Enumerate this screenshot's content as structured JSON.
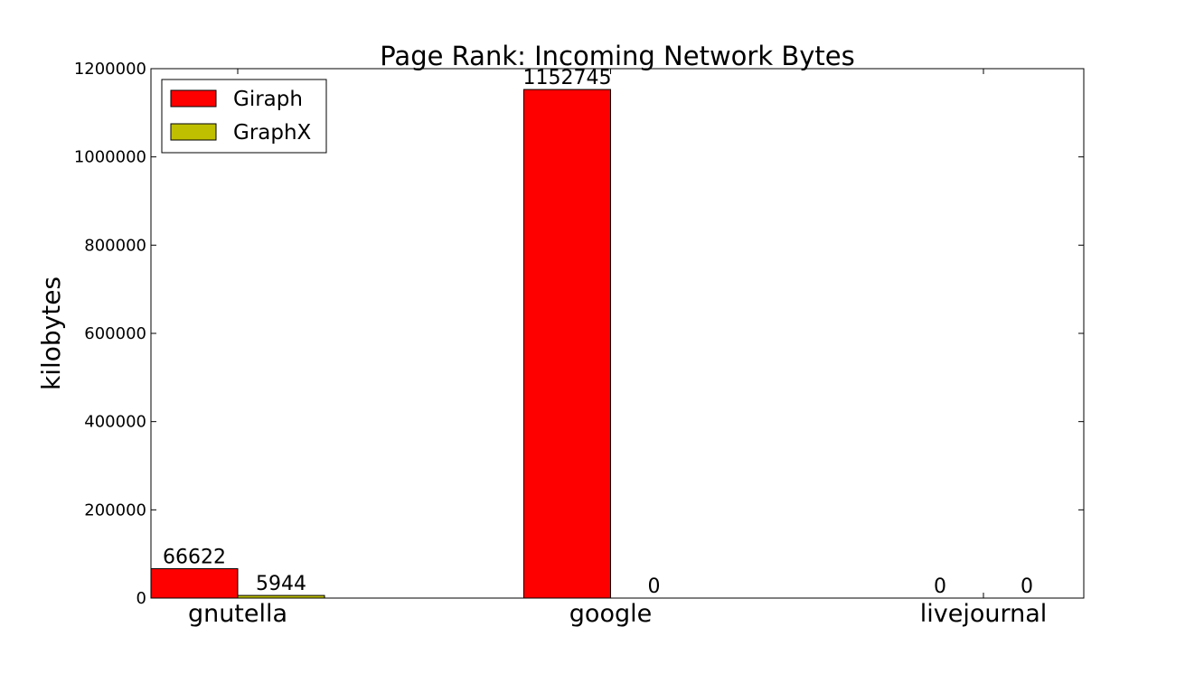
{
  "chart_data": {
    "type": "bar",
    "title": "Page Rank: Incoming Network Bytes",
    "xlabel": "",
    "ylabel": "kilobytes",
    "categories": [
      "gnutella",
      "google",
      "livejournal"
    ],
    "series": [
      {
        "name": "Giraph",
        "values": [
          66622,
          1152745,
          0
        ],
        "labels": [
          "66622",
          "1152745",
          "0"
        ],
        "color": "#ff0000"
      },
      {
        "name": "GraphX",
        "values": [
          5944,
          0,
          0
        ],
        "labels": [
          "5944",
          "0",
          "0"
        ],
        "color": "#bfbf00"
      }
    ],
    "ylim": [
      0,
      1200000
    ],
    "yticks": [
      0,
      200000,
      400000,
      600000,
      800000,
      1000000,
      1200000
    ],
    "ytick_labels": [
      "0",
      "200000",
      "400000",
      "600000",
      "800000",
      "1000000",
      "1200000"
    ],
    "grid": false,
    "legend_position": "top-left"
  }
}
